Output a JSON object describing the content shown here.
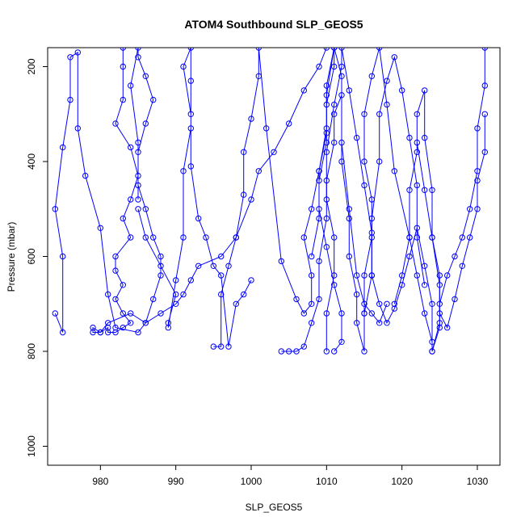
{
  "chart_data": {
    "type": "scatter",
    "title": "ATOM4 Southbound SLP_GEOS5",
    "xlabel": "SLP_GEOS5",
    "ylabel": "Pressure (mbar)",
    "xlim": [
      973,
      1033
    ],
    "ylim": [
      1040,
      160
    ],
    "y_reversed": true,
    "x_ticks": [
      980,
      990,
      1000,
      1010,
      1020,
      1030
    ],
    "y_ticks": [
      200,
      400,
      600,
      800,
      1000
    ],
    "series": [
      {
        "color": "#0000ff",
        "x": [
          983,
          983,
          983,
          982,
          984,
          985,
          984,
          983,
          984,
          982,
          982,
          983,
          982,
          983,
          984,
          983,
          982,
          981,
          981,
          980,
          979,
          979,
          980,
          981,
          984,
          986,
          988,
          990,
          991,
          992,
          993,
          996,
          998,
          1000,
          1001,
          1003,
          1005,
          1007,
          1009,
          1010
        ],
        "y": [
          160,
          200,
          270,
          320,
          370,
          430,
          480,
          520,
          560,
          600,
          630,
          660,
          690,
          720,
          740,
          750,
          760,
          760,
          750,
          760,
          750,
          760,
          760,
          740,
          720,
          740,
          720,
          700,
          680,
          650,
          620,
          600,
          560,
          480,
          420,
          380,
          320,
          250,
          200,
          160
        ]
      },
      {
        "color": "#0000ff",
        "x": [
          974,
          975,
          975,
          974,
          975,
          976,
          976,
          977,
          977,
          978,
          980,
          981,
          982,
          985,
          986,
          987,
          988,
          988,
          987,
          986,
          985,
          985,
          986,
          987,
          986,
          985,
          985,
          984,
          985,
          985
        ],
        "y": [
          720,
          760,
          600,
          500,
          370,
          270,
          180,
          170,
          330,
          430,
          540,
          680,
          750,
          760,
          740,
          690,
          640,
          600,
          560,
          500,
          450,
          380,
          320,
          270,
          220,
          180,
          160,
          240,
          360,
          480
        ]
      },
      {
        "color": "#0000ff",
        "x": [
          985,
          986,
          988,
          990,
          989,
          989,
          990,
          991,
          991,
          992,
          992,
          992,
          991,
          992,
          992,
          993,
          994,
          995,
          996,
          997,
          998,
          999,
          1000
        ],
        "y": [
          500,
          560,
          620,
          680,
          740,
          750,
          650,
          560,
          420,
          330,
          230,
          160,
          200,
          300,
          410,
          520,
          560,
          620,
          640,
          790,
          700,
          680,
          650
        ]
      },
      {
        "color": "#0000ff",
        "x": [
          995,
          996,
          996,
          997,
          998,
          999,
          999,
          1000,
          1001,
          1001,
          1002,
          1004,
          1006,
          1007,
          1008,
          1008,
          1007,
          1008,
          1009,
          1010,
          1010,
          1011,
          1012,
          1012,
          1013,
          1014,
          1015,
          1016,
          1017,
          1018
        ],
        "y": [
          790,
          790,
          680,
          620,
          560,
          470,
          380,
          310,
          220,
          160,
          330,
          610,
          690,
          720,
          700,
          640,
          560,
          500,
          420,
          330,
          260,
          160,
          220,
          360,
          500,
          640,
          700,
          720,
          740,
          700
        ]
      },
      {
        "color": "#0000ff",
        "x": [
          1004,
          1005,
          1006,
          1007,
          1008,
          1009,
          1009,
          1010,
          1010,
          1011,
          1011,
          1012,
          1012,
          1013,
          1013,
          1014,
          1014,
          1015,
          1015,
          1016,
          1016,
          1017,
          1017,
          1018,
          1019,
          1020,
          1021,
          1022,
          1022,
          1023
        ],
        "y": [
          800,
          800,
          800,
          790,
          740,
          690,
          610,
          520,
          440,
          360,
          300,
          260,
          400,
          520,
          600,
          680,
          740,
          800,
          720,
          640,
          520,
          400,
          300,
          230,
          180,
          250,
          350,
          450,
          560,
          660
        ]
      },
      {
        "color": "#0000ff",
        "x": [
          1010,
          1010,
          1011,
          1011,
          1010,
          1010,
          1011,
          1012,
          1012,
          1013,
          1014,
          1015,
          1016,
          1016,
          1017,
          1018,
          1019,
          1020,
          1021,
          1022,
          1023,
          1024,
          1024,
          1025,
          1025,
          1026,
          1027,
          1028,
          1029,
          1030,
          1030,
          1031,
          1031
        ],
        "y": [
          800,
          720,
          640,
          560,
          480,
          380,
          280,
          200,
          160,
          250,
          350,
          450,
          550,
          640,
          700,
          740,
          710,
          660,
          600,
          540,
          620,
          700,
          800,
          750,
          700,
          640,
          600,
          560,
          500,
          420,
          330,
          240,
          160
        ]
      },
      {
        "color": "#0000ff",
        "x": [
          1019,
          1020,
          1021,
          1021,
          1022,
          1022,
          1023,
          1023,
          1024,
          1024,
          1025,
          1025,
          1026,
          1027,
          1028,
          1029,
          1030,
          1030,
          1031,
          1031
        ],
        "y": [
          700,
          640,
          560,
          460,
          380,
          300,
          250,
          350,
          460,
          560,
          640,
          720,
          750,
          690,
          620,
          560,
          500,
          440,
          380,
          300
        ]
      },
      {
        "color": "#0000ff",
        "x": [
          1015,
          1015,
          1016,
          1016,
          1015,
          1015,
          1016,
          1017,
          1018,
          1019,
          1021,
          1022,
          1023,
          1024,
          1024,
          1025,
          1025,
          1024,
          1023,
          1022
        ],
        "y": [
          720,
          640,
          560,
          480,
          400,
          300,
          220,
          160,
          280,
          420,
          560,
          640,
          720,
          780,
          800,
          740,
          660,
          560,
          460,
          360
        ]
      },
      {
        "color": "#0000ff",
        "x": [
          1008,
          1009,
          1009,
          1010,
          1010,
          1011,
          1011,
          1010,
          1010,
          1009,
          1009,
          1010,
          1011,
          1012,
          1012,
          1011
        ],
        "y": [
          600,
          520,
          440,
          360,
          280,
          200,
          160,
          240,
          340,
          420,
          500,
          580,
          660,
          720,
          780,
          800
        ]
      }
    ]
  }
}
